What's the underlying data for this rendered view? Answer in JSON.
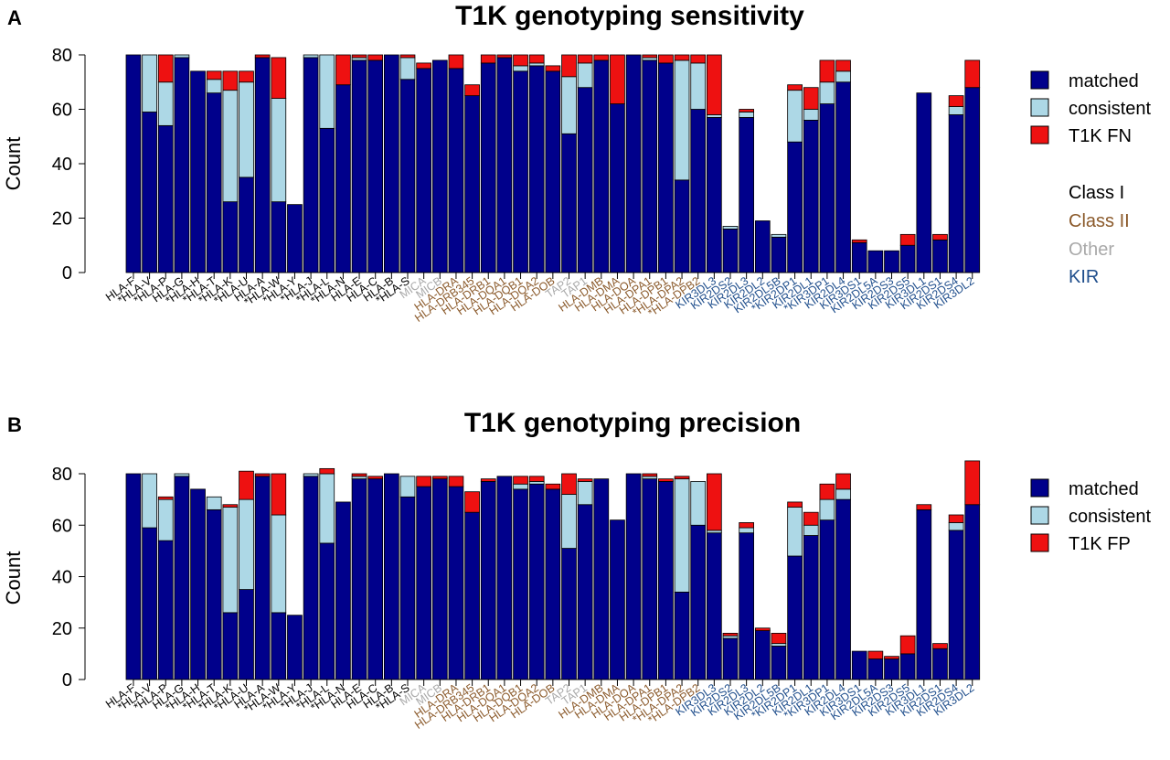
{
  "colors": {
    "matched": "#00008b",
    "consistent": "#add8e6",
    "error": "#ee1111",
    "class_I": "#000000",
    "class_II": "#8b5a2b",
    "other": "#a9a9a9",
    "kir": "#1f4e8c"
  },
  "gene_classes": {
    "labels": [
      "Class I",
      "Class II",
      "Other",
      "KIR"
    ]
  },
  "chart_data": [
    {
      "type": "bar",
      "stacked": true,
      "panel_label": "A",
      "title": "T1K genotyping sensitivity",
      "xlabel": "",
      "ylabel": "Count",
      "ylim": [
        0,
        80
      ],
      "yticks": [
        0,
        20,
        40,
        60,
        80
      ],
      "legend_position": "right",
      "categories": [
        "HLA-F",
        "*HLA-V",
        "*HLA-P",
        "HLA-G",
        "*HLA-H",
        "*HLA-T",
        "*HLA-K",
        "*HLA-U",
        "HLA-A",
        "*HLA-W",
        "*HLA-Y",
        "*HLA-J",
        "*HLA-L",
        "*HLA-N",
        "HLA-E",
        "HLA-C",
        "HLA-B",
        "*HLA-S",
        "MICA",
        "MICB",
        "HLA-DRA",
        "HLA-DRB345",
        "HLA-DRB1",
        "HLA-DQA1",
        "HLA-DQB1",
        "HLA-DQA2",
        "HLA-DOB",
        "TAP2",
        "TAP1",
        "HLA-DMB",
        "HLA-DMA",
        "HLA-DOA",
        "HLA-DPA1",
        "HLA-DPB1",
        "*HLA-DPA2",
        "*HLA-DPB2",
        "KIR3DL3",
        "KIR2DS2",
        "KIR2DL3",
        "KIR2DL2",
        "KIR2DL5B",
        "*KIR2DP1",
        "KIR2DL1",
        "*KIR3DP1",
        "KIR2DL4",
        "KIR3DS1",
        "KIR2DL5A",
        "KIR2DS3",
        "KIR2DS5",
        "KIR3DL1",
        "KIR2DS1",
        "KIR2DS4",
        "KIR3DL2"
      ],
      "category_class": [
        "I",
        "I",
        "I",
        "I",
        "I",
        "I",
        "I",
        "I",
        "I",
        "I",
        "I",
        "I",
        "I",
        "I",
        "I",
        "I",
        "I",
        "I",
        "O",
        "O",
        "II",
        "II",
        "II",
        "II",
        "II",
        "II",
        "II",
        "O",
        "O",
        "II",
        "II",
        "II",
        "II",
        "II",
        "II",
        "II",
        "K",
        "K",
        "K",
        "K",
        "K",
        "K",
        "K",
        "K",
        "K",
        "K",
        "K",
        "K",
        "K",
        "K",
        "K",
        "K",
        "K"
      ],
      "series": [
        {
          "name": "matched",
          "values": [
            80,
            59,
            54,
            79,
            74,
            66,
            26,
            35,
            79,
            26,
            25,
            79,
            53,
            69,
            78,
            78,
            80,
            71,
            75,
            78,
            75,
            65,
            77,
            79,
            74,
            76,
            74,
            51,
            68,
            78,
            62,
            80,
            78,
            77,
            34,
            60,
            57,
            16,
            57,
            19,
            13,
            48,
            56,
            62,
            70,
            11,
            8,
            8,
            10,
            66,
            12,
            58,
            68
          ]
        },
        {
          "name": "consistent",
          "values": [
            0,
            21,
            16,
            1,
            0,
            5,
            41,
            35,
            0,
            38,
            0,
            1,
            27,
            0,
            1,
            0,
            0,
            8,
            0,
            0,
            0,
            0,
            0,
            0,
            2,
            1,
            0,
            21,
            9,
            0,
            0,
            0,
            1,
            0,
            44,
            17,
            1,
            1,
            2,
            0,
            1,
            19,
            4,
            8,
            4,
            0,
            0,
            0,
            0,
            0,
            0,
            3,
            0
          ]
        },
        {
          "name": "T1K FN",
          "values": [
            0,
            0,
            10,
            0,
            0,
            3,
            7,
            4,
            1,
            15,
            0,
            0,
            0,
            11,
            1,
            2,
            0,
            1,
            2,
            0,
            5,
            4,
            3,
            1,
            4,
            3,
            2,
            8,
            3,
            2,
            18,
            0,
            1,
            3,
            2,
            3,
            22,
            0,
            1,
            0,
            0,
            2,
            8,
            8,
            4,
            1,
            0,
            0,
            4,
            0,
            2,
            4,
            10
          ]
        }
      ]
    },
    {
      "type": "bar",
      "stacked": true,
      "panel_label": "B",
      "title": "T1K genotyping precision",
      "xlabel": "",
      "ylabel": "Count",
      "ylim": [
        0,
        80
      ],
      "yticks": [
        0,
        20,
        40,
        60,
        80
      ],
      "legend_position": "right",
      "categories": [
        "HLA-F",
        "*HLA-V",
        "*HLA-P",
        "HLA-G",
        "*HLA-H",
        "*HLA-T",
        "*HLA-K",
        "*HLA-U",
        "HLA-A",
        "*HLA-W",
        "*HLA-Y",
        "*HLA-J",
        "*HLA-L",
        "*HLA-N",
        "HLA-E",
        "HLA-C",
        "HLA-B",
        "*HLA-S",
        "MICA",
        "MICB",
        "HLA-DRA",
        "HLA-DRB345",
        "HLA-DRB1",
        "HLA-DQA1",
        "HLA-DQB1",
        "HLA-DQA2",
        "HLA-DOB",
        "TAP2",
        "TAP1",
        "HLA-DMB",
        "HLA-DMA",
        "HLA-DOA",
        "HLA-DPA1",
        "HLA-DPB1",
        "*HLA-DPA2",
        "*HLA-DPB2",
        "KIR3DL3",
        "KIR2DS2",
        "KIR2DL3",
        "KIR2DL2",
        "KIR2DL5B",
        "*KIR2DP1",
        "KIR2DL1",
        "*KIR3DP1",
        "KIR2DL4",
        "KIR3DS1",
        "KIR2DL5A",
        "KIR2DS3",
        "KIR2DS5",
        "KIR3DL1",
        "KIR2DS1",
        "KIR2DS4",
        "KIR3DL2"
      ],
      "category_class": [
        "I",
        "I",
        "I",
        "I",
        "I",
        "I",
        "I",
        "I",
        "I",
        "I",
        "I",
        "I",
        "I",
        "I",
        "I",
        "I",
        "I",
        "I",
        "O",
        "O",
        "II",
        "II",
        "II",
        "II",
        "II",
        "II",
        "II",
        "O",
        "O",
        "II",
        "II",
        "II",
        "II",
        "II",
        "II",
        "II",
        "K",
        "K",
        "K",
        "K",
        "K",
        "K",
        "K",
        "K",
        "K",
        "K",
        "K",
        "K",
        "K",
        "K",
        "K",
        "K",
        "K"
      ],
      "series": [
        {
          "name": "matched",
          "values": [
            80,
            59,
            54,
            79,
            74,
            66,
            26,
            35,
            79,
            26,
            25,
            79,
            53,
            69,
            78,
            78,
            80,
            71,
            75,
            78,
            75,
            65,
            77,
            79,
            74,
            76,
            74,
            51,
            68,
            78,
            62,
            80,
            78,
            77,
            34,
            60,
            57,
            16,
            57,
            19,
            13,
            48,
            56,
            62,
            70,
            11,
            8,
            8,
            10,
            66,
            12,
            58,
            68
          ]
        },
        {
          "name": "consistent",
          "values": [
            0,
            21,
            16,
            1,
            0,
            5,
            41,
            35,
            0,
            38,
            0,
            1,
            27,
            0,
            1,
            0,
            0,
            8,
            0,
            0,
            0,
            0,
            0,
            0,
            2,
            1,
            0,
            21,
            9,
            0,
            0,
            0,
            1,
            0,
            44,
            17,
            1,
            1,
            2,
            0,
            1,
            19,
            4,
            8,
            4,
            0,
            0,
            0,
            0,
            0,
            0,
            3,
            0
          ]
        },
        {
          "name": "T1K FP",
          "values": [
            0,
            0,
            1,
            0,
            0,
            0,
            1,
            11,
            1,
            16,
            0,
            0,
            2,
            0,
            1,
            1,
            0,
            0,
            4,
            1,
            4,
            8,
            1,
            0,
            3,
            2,
            2,
            8,
            1,
            0,
            0,
            0,
            1,
            1,
            1,
            0,
            22,
            1,
            2,
            1,
            4,
            2,
            5,
            6,
            6,
            0,
            3,
            1,
            7,
            2,
            2,
            3,
            17
          ]
        }
      ]
    }
  ]
}
